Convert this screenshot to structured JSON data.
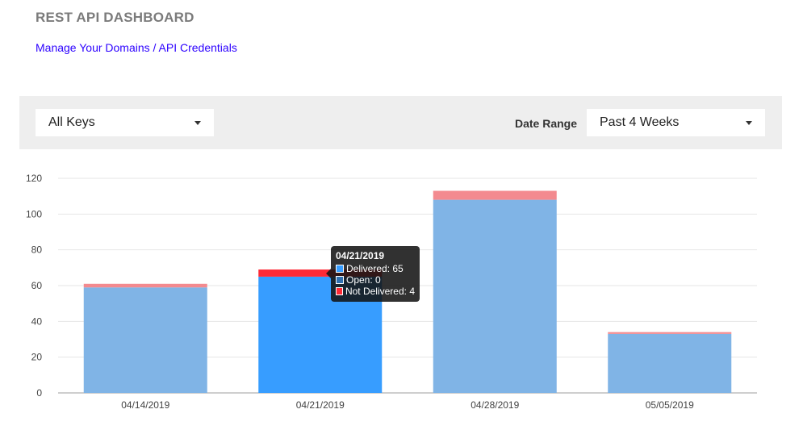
{
  "header": {
    "title": "REST API DASHBOARD",
    "manage_link": "Manage Your Domains / API Credentials"
  },
  "filters": {
    "keys_selected": "All Keys",
    "date_range_label": "Date Range",
    "date_range_selected": "Past 4 Weeks"
  },
  "icons": {
    "dropdown": "caret-down-icon"
  },
  "colors": {
    "delivered": "#80b4e6",
    "delivered_active": "#379dff",
    "not_delivered": "#f38a8f",
    "not_delivered_active": "#ff2a36",
    "open": "#2f6fb0"
  },
  "chart_data": {
    "type": "bar",
    "stacked": true,
    "categories": [
      "04/14/2019",
      "04/21/2019",
      "04/28/2019",
      "05/05/2019"
    ],
    "series": [
      {
        "name": "Delivered",
        "values": [
          59,
          65,
          108,
          33
        ]
      },
      {
        "name": "Open",
        "values": [
          0,
          0,
          0,
          0
        ]
      },
      {
        "name": "Not Delivered",
        "values": [
          2,
          4,
          5,
          1
        ]
      }
    ],
    "ylim": [
      0,
      120
    ],
    "yticks": [
      0,
      20,
      40,
      60,
      80,
      100,
      120
    ],
    "grid": true,
    "legend": "none",
    "highlighted_index": 1
  },
  "tooltip": {
    "date": "04/21/2019",
    "rows": [
      {
        "label": "Delivered: 65"
      },
      {
        "label": "Open: 0"
      },
      {
        "label": "Not Delivered: 4"
      }
    ]
  }
}
